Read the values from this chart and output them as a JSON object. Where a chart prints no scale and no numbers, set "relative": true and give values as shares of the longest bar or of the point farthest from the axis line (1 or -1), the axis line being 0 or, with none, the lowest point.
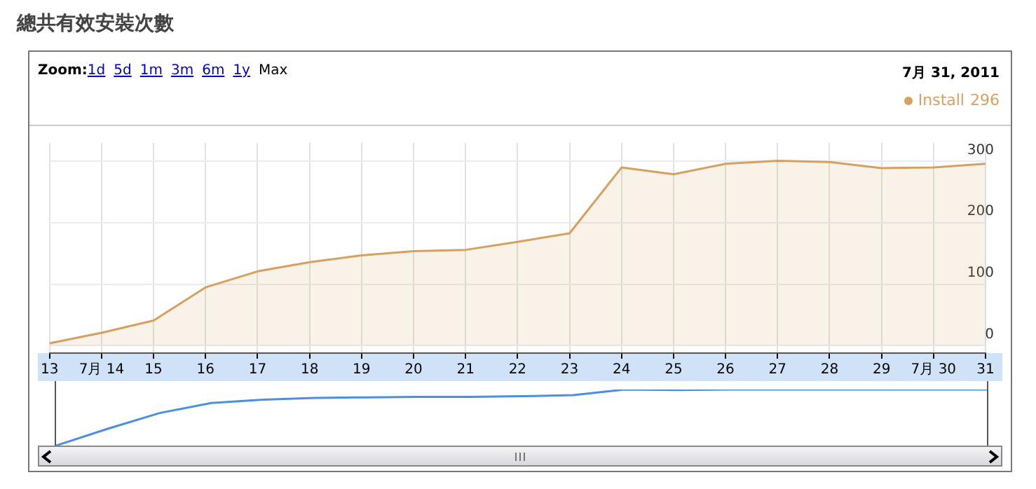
{
  "chart_data": [
    {
      "type": "area",
      "title": "總共有效安裝次數",
      "annotations": [
        "Zoom:",
        "1d",
        "5d",
        "1m",
        "3m",
        "6m",
        "1y",
        "Max",
        "7月 31, 2011",
        "296"
      ],
      "x": [
        "2011-07-13",
        "2011-07-14",
        "2011-07-15",
        "2011-07-16",
        "2011-07-17",
        "2011-07-18",
        "2011-07-19",
        "2011-07-20",
        "2011-07-21",
        "2011-07-22",
        "2011-07-23",
        "2011-07-24",
        "2011-07-25",
        "2011-07-26",
        "2011-07-27",
        "2011-07-28",
        "2011-07-29",
        "2011-07-30",
        "2011-07-31"
      ],
      "series": [
        {
          "name": "Install",
          "color": "#d6a060",
          "values": [
            4,
            21,
            41,
            95,
            121,
            136,
            147,
            154,
            156,
            169,
            183,
            290,
            279,
            296,
            301,
            299,
            289,
            290,
            296
          ]
        }
      ],
      "xlim": [
        "2011-07-13",
        "2011-07-31"
      ],
      "xticks": [
        {
          "value": "2011-07-13",
          "label": "13"
        },
        {
          "value": "2011-07-14",
          "label": "7月 14"
        },
        {
          "value": "2011-07-15",
          "label": "15"
        },
        {
          "value": "2011-07-16",
          "label": "16"
        },
        {
          "value": "2011-07-17",
          "label": "17"
        },
        {
          "value": "2011-07-18",
          "label": "18"
        },
        {
          "value": "2011-07-19",
          "label": "19"
        },
        {
          "value": "2011-07-20",
          "label": "20"
        },
        {
          "value": "2011-07-21",
          "label": "21"
        },
        {
          "value": "2011-07-22",
          "label": "22"
        },
        {
          "value": "2011-07-23",
          "label": "23"
        },
        {
          "value": "2011-07-24",
          "label": "24"
        },
        {
          "value": "2011-07-25",
          "label": "25"
        },
        {
          "value": "2011-07-26",
          "label": "26"
        },
        {
          "value": "2011-07-27",
          "label": "27"
        },
        {
          "value": "2011-07-28",
          "label": "28"
        },
        {
          "value": "2011-07-29",
          "label": "29"
        },
        {
          "value": "2011-07-30",
          "label": "7月 30"
        },
        {
          "value": "2011-07-31",
          "label": "31"
        }
      ],
      "ylim": [
        -12,
        330
      ],
      "yticks": [
        0,
        100,
        200,
        300
      ],
      "grid": true,
      "legend": "top right"
    },
    {
      "type": "line",
      "relative": true,
      "categories": [
        null,
        null,
        null,
        null,
        null,
        null,
        null,
        null,
        null,
        null,
        null,
        null,
        null,
        null,
        null,
        null,
        null,
        null,
        null
      ],
      "series": [
        {
          "color": "#4a8fe0",
          "values": [
            0,
            0.3,
            0.58,
            0.76,
            0.82,
            0.85,
            0.86,
            0.87,
            0.87,
            0.88,
            0.9,
            1,
            0.99,
            1,
            1,
            1,
            1,
            1,
            1
          ]
        }
      ]
    }
  ]
}
